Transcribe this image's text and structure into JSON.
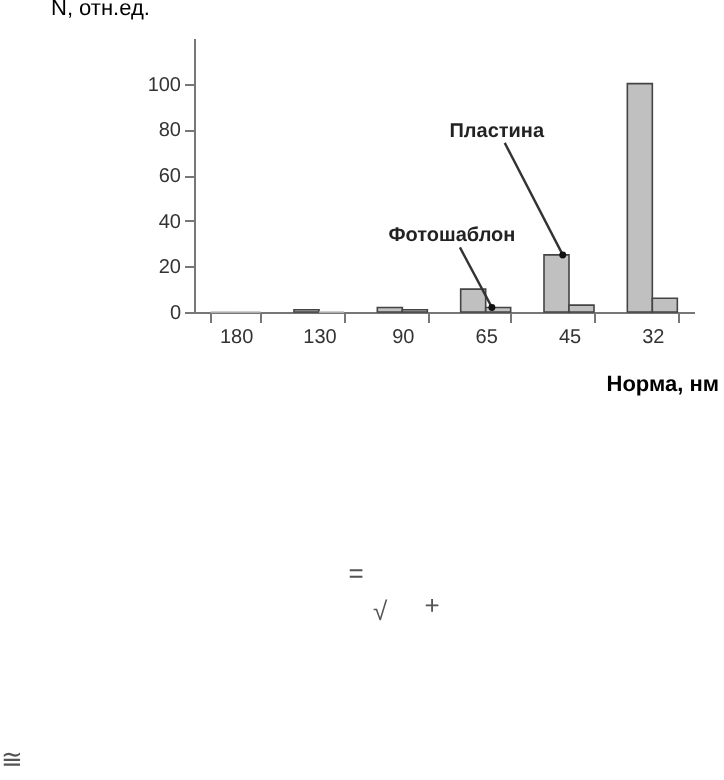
{
  "chart_data": {
    "type": "bar",
    "xlabel": "Норма, нм",
    "ylabel": "N, отн.ед.",
    "categories": [
      "180",
      "130",
      "90",
      "65",
      "45",
      "32"
    ],
    "series": [
      {
        "color": "#c0c0c0",
        "values": [
          0,
          1,
          2,
          10,
          25,
          100
        ]
      },
      {
        "color": "#c0c0c0",
        "values": [
          0,
          0,
          1,
          2,
          3,
          6
        ]
      }
    ],
    "ylim": [
      0,
      120
    ],
    "yticks": [
      0,
      20,
      40,
      60,
      80,
      100
    ],
    "grid": false,
    "annotations": [
      {
        "text": "Пластина",
        "x": "45",
        "y": 25
      },
      {
        "text": "Фотошаблон",
        "x": "65",
        "y": 2
      },
      "=",
      "√",
      "+",
      "≅"
    ]
  }
}
